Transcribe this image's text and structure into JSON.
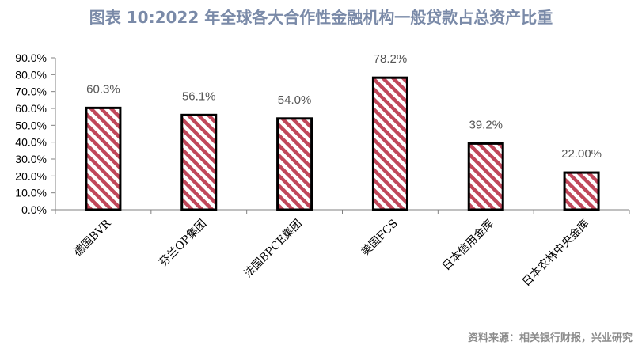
{
  "title": "图表 10:2022 年全球各大合作性金融机构一般贷款占总资产比重",
  "source": "资料来源：相关银行财报，兴业研究",
  "chart_data": {
    "type": "bar",
    "categories": [
      "德国BVR",
      "芬兰OP集团",
      "法国BPCE集团",
      "美国FCS",
      "日本信用金库",
      "日本农林中央金库"
    ],
    "values": [
      60.3,
      56.1,
      54.0,
      78.2,
      39.2,
      22.0
    ],
    "data_labels": [
      "60.3%",
      "56.1%",
      "54.0%",
      "78.2%",
      "39.2%",
      "22.00%"
    ],
    "yticks": [
      "0.0%",
      "10.0%",
      "20.0%",
      "30.0%",
      "40.0%",
      "50.0%",
      "60.0%",
      "70.0%",
      "80.0%",
      "90.0%"
    ],
    "ylim": [
      0,
      90
    ],
    "xlabel": "",
    "ylabel": "",
    "grid": false,
    "bar_pattern": "diagonal-stripes",
    "colors": {
      "stripe": "#c0475a",
      "border": "#000000",
      "axis": "#808080"
    }
  }
}
